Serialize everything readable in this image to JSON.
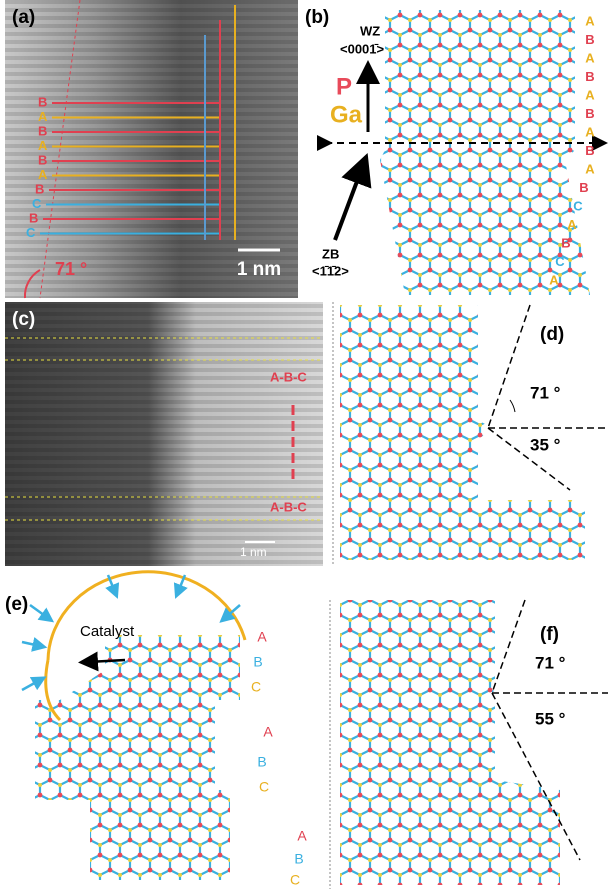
{
  "a": {
    "label": "(a)",
    "stacking": [
      "B",
      "A",
      "B",
      "A",
      "B",
      "A",
      "B",
      "C",
      "B",
      "C"
    ],
    "angle": "71 °",
    "scale_bar": "1 nm"
  },
  "b": {
    "label": "(b)",
    "wz_label": "WZ",
    "wz_direction": "<0001̄>",
    "atoms": [
      "P",
      "Ga"
    ],
    "zb_label": "ZB",
    "zb_direction": "<1̄1̄2>",
    "stacking": [
      "A",
      "B",
      "A",
      "B",
      "A",
      "B",
      "A",
      "B",
      "A",
      "B",
      "C",
      "A",
      "B",
      "C",
      "A"
    ]
  },
  "c": {
    "label": "(c)",
    "sequence_top": "A-B-C",
    "sequence_bottom": "A-B-C",
    "scale_bar": "1 nm"
  },
  "d": {
    "label": "(d)",
    "angle_top": "71 °",
    "angle_bottom": "35 °"
  },
  "e": {
    "label": "(e)",
    "catalyst": "Catalyst",
    "stacking": [
      "A",
      "B",
      "C",
      "A",
      "B",
      "C",
      "A",
      "B",
      "C"
    ]
  },
  "f": {
    "label": "(f)",
    "angle_top": "71 °",
    "angle_bottom": "55 °"
  }
}
